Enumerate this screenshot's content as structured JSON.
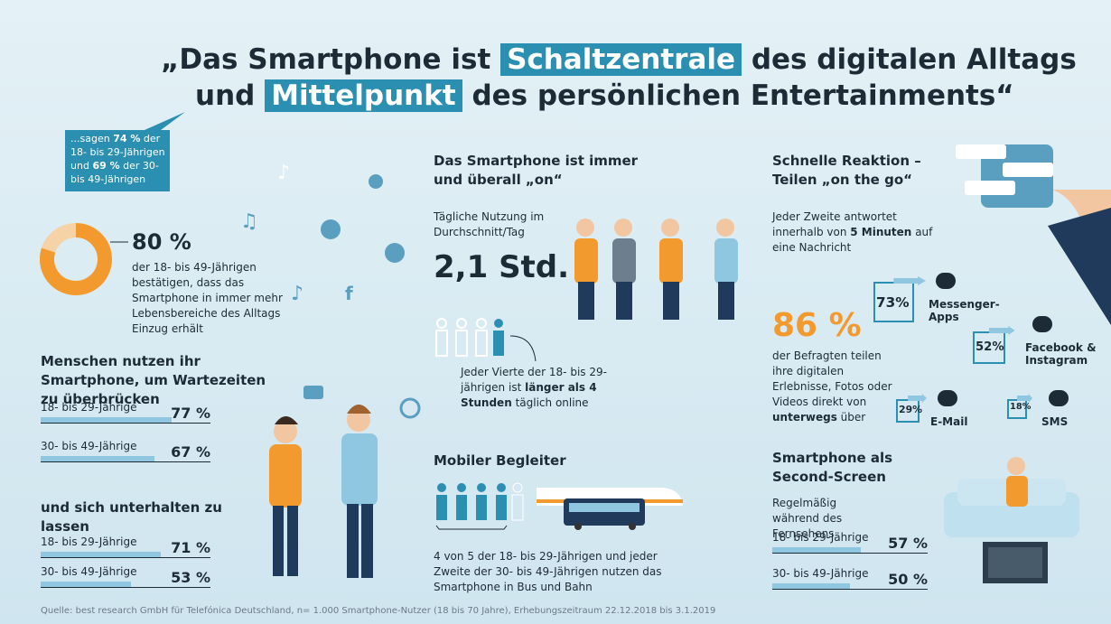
{
  "headline": {
    "line1": [
      "„Das Smartphone ist",
      "Schaltzentrale",
      "des digitalen Alltags"
    ],
    "line2": [
      "und",
      "Mittelpunkt",
      "des persönlichen Entertainments“"
    ]
  },
  "callout": [
    "...sagen",
    "74 %",
    "der 18- bis 29-Jährigen und",
    "69 %",
    "der 30- bis 49-Jährigen"
  ],
  "everyday": {
    "value": 80,
    "label": "80 %",
    "text": "der 18- bis 49-Jährigen bestätigen, dass das Smartphone in immer mehr Lebensbereiche des Alltags Einzug erhält"
  },
  "waiting": {
    "title": "Menschen nutzen ihr Smartphone, um Wartezeiten zu überbrücken",
    "rows": [
      {
        "label": "18- bis 29-Jährige",
        "value": 77,
        "value_label": "77 %"
      },
      {
        "label": "30- bis 49-Jährige",
        "value": 67,
        "value_label": "67 %"
      }
    ]
  },
  "entertainment": {
    "title": "und sich unterhalten zu lassen",
    "rows": [
      {
        "label": "18- bis 29-Jährige",
        "value": 71,
        "value_label": "71 %"
      },
      {
        "label": "30- bis 49-Jährige",
        "value": 53,
        "value_label": "53 %"
      }
    ]
  },
  "always_on": {
    "title": "Das Smartphone ist immer und überall „on“",
    "subtitle": "Tägliche Nutzung im Durchschnitt/Tag",
    "value": "2,1 Std.",
    "note": [
      "Jeder Vierte der 18- bis 29-jährigen ist",
      "länger als 4 Stunden",
      "täglich online"
    ]
  },
  "companion": {
    "title": "Mobiler Begleiter",
    "text": "4 von 5 der 18- bis 29-Jährigen und jeder Zweite der 30- bis 49-Jährigen nutzen das Smartphone in Bus und Bahn"
  },
  "reaction": {
    "title": "Schnelle Reaktion – Teilen „on the go“",
    "text": [
      "Jeder Zweite antwortet innerhalb von",
      "5 Minuten",
      "auf eine Nachricht"
    ]
  },
  "sharing": {
    "value": "86 %",
    "text": [
      "der Befragten teilen ihre digitalen Erlebnisse, Fotos oder Videos direkt von",
      "unterwegs",
      "über"
    ],
    "channels": [
      {
        "name": "Messenger-Apps",
        "value": 73,
        "label": "73%"
      },
      {
        "name": "Facebook & Instagram",
        "value": 52,
        "label": "52%"
      },
      {
        "name": "E-Mail",
        "value": 29,
        "label": "29%"
      },
      {
        "name": "SMS",
        "value": 18,
        "label": "18%"
      }
    ]
  },
  "second_screen": {
    "title": "Smartphone als Second-Screen",
    "subtitle": "Regelmäßig während des Fernsehens",
    "rows": [
      {
        "label": "18- bis 29-Jährige",
        "value": 57,
        "value_label": "57 %"
      },
      {
        "label": "30- bis 49-Jährige",
        "value": 50,
        "value_label": "50 %"
      }
    ]
  },
  "source": "Quelle: best research GmbH für Telefónica Deutschland, n= 1.000 Smartphone-Nutzer (18 bis 70 Jahre), Erhebungszeitraum 22.12.2018 bis 3.1.2019"
}
